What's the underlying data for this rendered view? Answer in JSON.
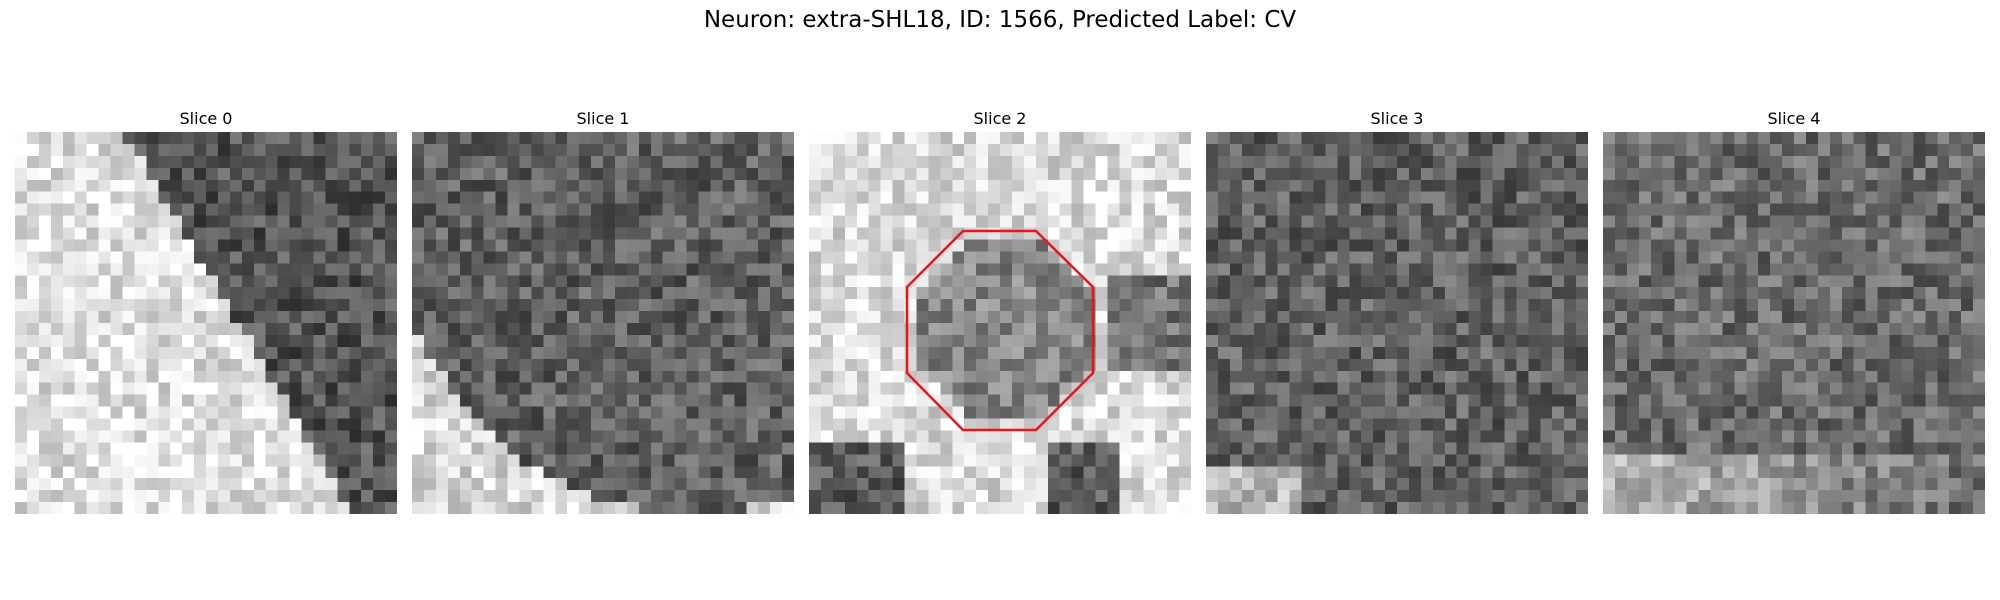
{
  "figure": {
    "title": "Neuron: extra-SHL18, ID: 1566, Predicted Label: CV",
    "roi_color": "#e8141e"
  },
  "slices": [
    {
      "label": "Slice 0"
    },
    {
      "label": "Slice 1"
    },
    {
      "label": "Slice 2"
    },
    {
      "label": "Slice 3"
    },
    {
      "label": "Slice 4"
    }
  ]
}
